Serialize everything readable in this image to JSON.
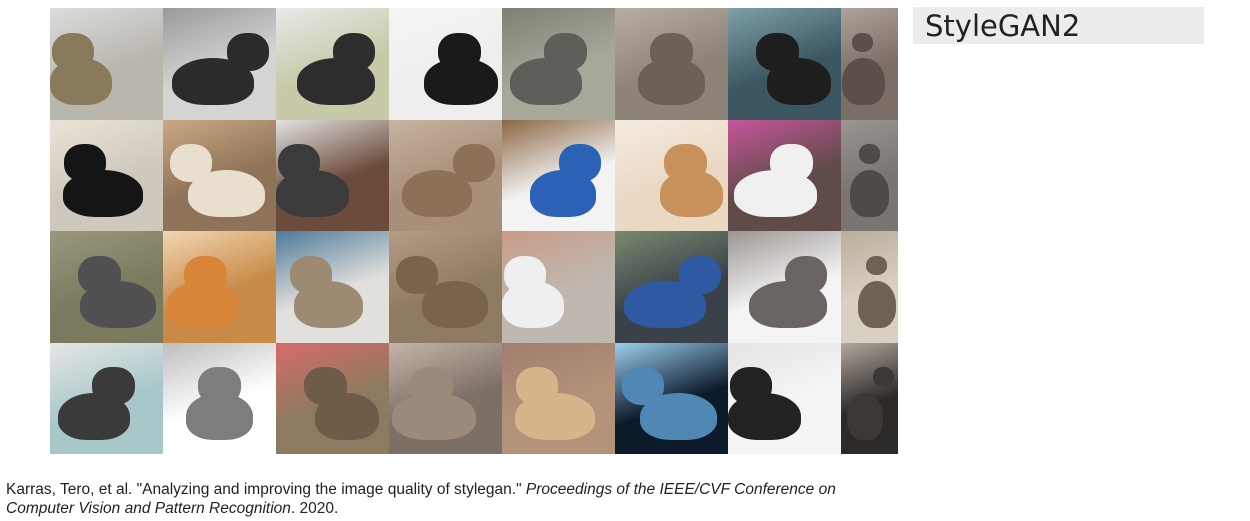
{
  "title": "StyleGAN2",
  "citation": {
    "authors_title": "Karras, Tero, et al. \"Analyzing and improving the image quality of stylegan.\"",
    "venue": "Proceedings of the IEEE/CVF Conference on Computer Vision and Pattern Recognition",
    "year": ". 2020."
  },
  "grid": {
    "rows": 4,
    "cols": 8,
    "tiles": [
      {
        "bg": "#b9b6ae",
        "fur": "#8a7a5c",
        "accent": "#dcdcdc"
      },
      {
        "bg": "#d4d4d4",
        "fur": "#2b2b2b",
        "accent": "#9a9a9a"
      },
      {
        "bg": "#c7c9a8",
        "fur": "#2d2d2d",
        "accent": "#e9e9e9"
      },
      {
        "bg": "#eeeeee",
        "fur": "#1a1a1a",
        "accent": "#f4f4f4"
      },
      {
        "bg": "#a7a79a",
        "fur": "#5d5f58",
        "accent": "#7f7f74"
      },
      {
        "bg": "#8d8379",
        "fur": "#6c6058",
        "accent": "#b9aea2"
      },
      {
        "bg": "#3c5761",
        "fur": "#1e1e1e",
        "accent": "#7ea0a8"
      },
      {
        "bg": "#7c6d66",
        "fur": "#5a4f4b",
        "accent": "#b0a39b"
      },
      {
        "bg": "#cfc8bd",
        "fur": "#151515",
        "accent": "#eae3d6"
      },
      {
        "bg": "#8e7358",
        "fur": "#e9dfcf",
        "accent": "#caa883"
      },
      {
        "bg": "#6b4b3b",
        "fur": "#3b3b3b",
        "accent": "#e2e2e2"
      },
      {
        "bg": "#a78f79",
        "fur": "#8c7058",
        "accent": "#c7b3a0"
      },
      {
        "bg": "#f3f3f3",
        "fur": "#2b62b5",
        "accent": "#8b6743"
      },
      {
        "bg": "#ead8c3",
        "fur": "#c8915b",
        "accent": "#f4ece2"
      },
      {
        "bg": "#5f4b48",
        "fur": "#f0f0f0",
        "accent": "#c8559c"
      },
      {
        "bg": "#7a7570",
        "fur": "#4d4a48",
        "accent": "#9a9590"
      },
      {
        "bg": "#7b7a5f",
        "fur": "#505052",
        "accent": "#99987c"
      },
      {
        "bg": "#c78a48",
        "fur": "#d9853a",
        "accent": "#f2d6b2"
      },
      {
        "bg": "#e2e0dc",
        "fur": "#9c8a72",
        "accent": "#4d7a9a"
      },
      {
        "bg": "#8f7a63",
        "fur": "#7a634d",
        "accent": "#b39c82"
      },
      {
        "bg": "#bfb8b0",
        "fur": "#efefef",
        "accent": "#c89b87"
      },
      {
        "bg": "#3a4149",
        "fur": "#2f5aa3",
        "accent": "#7a8a70"
      },
      {
        "bg": "#f4f4f4",
        "fur": "#6a6563",
        "accent": "#9a9592"
      },
      {
        "bg": "#d8d0c2",
        "fur": "#6e6253",
        "accent": "#b9ad9a"
      },
      {
        "bg": "#a8c7c9",
        "fur": "#3a3a3a",
        "accent": "#e6e6e6"
      },
      {
        "bg": "#ffffff",
        "fur": "#7d7d7d",
        "accent": "#bdbdbd"
      },
      {
        "bg": "#8c7b60",
        "fur": "#6e5c48",
        "accent": "#d86a6a"
      },
      {
        "bg": "#7c6f66",
        "fur": "#9b8a7c",
        "accent": "#c4b5a8"
      },
      {
        "bg": "#b4927a",
        "fur": "#d7b58a",
        "accent": "#a07d6d"
      },
      {
        "bg": "#0d1a2a",
        "fur": "#4f88b5",
        "accent": "#9bd0f0"
      },
      {
        "bg": "#f5f5f5",
        "fur": "#222222",
        "accent": "#e4e4e4"
      },
      {
        "bg": "#2c2a29",
        "fur": "#3c3835",
        "accent": "#b3a89e"
      }
    ]
  }
}
